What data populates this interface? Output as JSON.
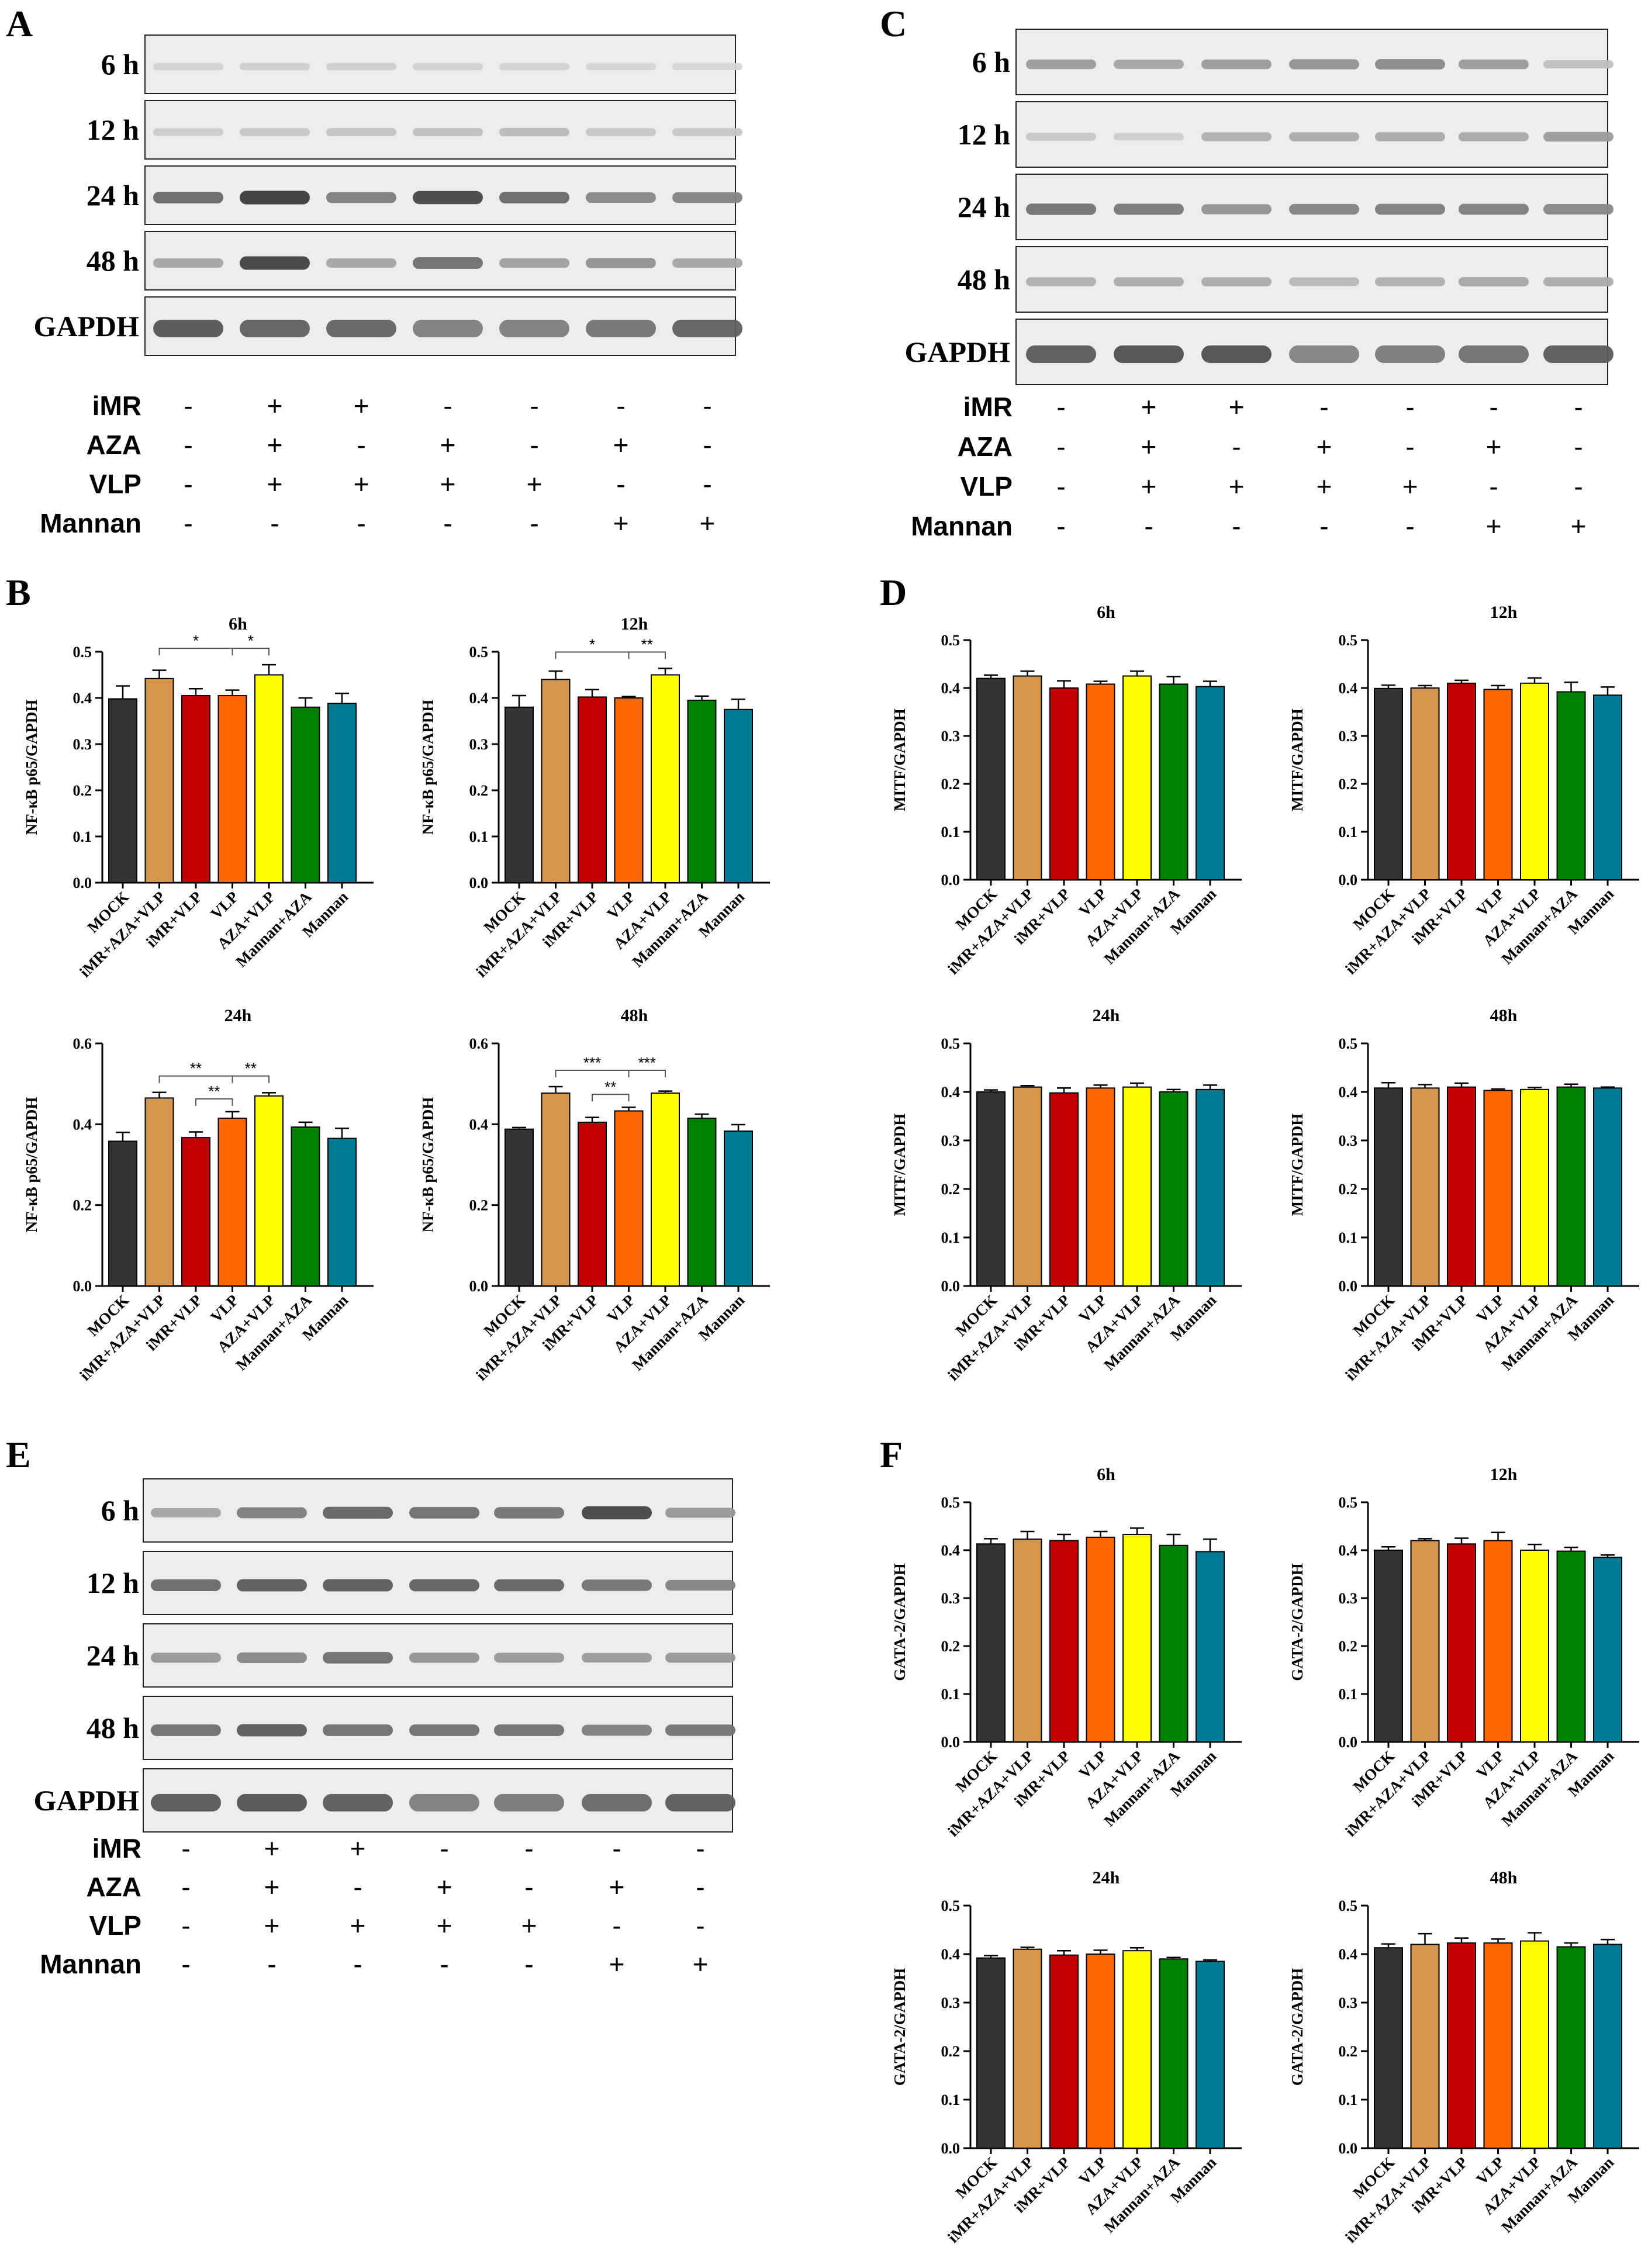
{
  "figure": {
    "panel_letters": [
      "A",
      "B",
      "C",
      "D",
      "E",
      "F"
    ],
    "treatments": {
      "rows": [
        {
          "label": "iMR",
          "signs": [
            "-",
            "+",
            "+",
            "-",
            "-",
            "-",
            "-"
          ]
        },
        {
          "label": "AZA",
          "signs": [
            "-",
            "+",
            "-",
            "+",
            "-",
            "+",
            "-"
          ]
        },
        {
          "label": "VLP",
          "signs": [
            "-",
            "+",
            "+",
            "+",
            "+",
            "-",
            "-"
          ]
        },
        {
          "label": "Mannan",
          "signs": [
            "-",
            "-",
            "-",
            "-",
            "-",
            "+",
            "+"
          ]
        }
      ]
    },
    "blots": {
      "A": {
        "labels": [
          "6 h",
          "12 h",
          "24 h",
          "48 h",
          "GAPDH"
        ],
        "band_intensity": [
          [
            0.12,
            0.14,
            0.14,
            0.13,
            0.12,
            0.11,
            0.1
          ],
          [
            0.16,
            0.18,
            0.2,
            0.22,
            0.24,
            0.18,
            0.18
          ],
          [
            0.65,
            0.88,
            0.55,
            0.82,
            0.65,
            0.5,
            0.52
          ],
          [
            0.35,
            0.85,
            0.35,
            0.62,
            0.38,
            0.45,
            0.35
          ],
          [
            0.75,
            0.7,
            0.68,
            0.55,
            0.55,
            0.6,
            0.7
          ]
        ]
      },
      "C": {
        "labels": [
          "6 h",
          "12 h",
          "24 h",
          "48 h",
          "GAPDH"
        ],
        "band_intensity": [
          [
            0.4,
            0.35,
            0.4,
            0.45,
            0.48,
            0.4,
            0.22
          ],
          [
            0.18,
            0.15,
            0.3,
            0.32,
            0.33,
            0.33,
            0.4
          ],
          [
            0.6,
            0.58,
            0.45,
            0.52,
            0.55,
            0.55,
            0.5
          ],
          [
            0.3,
            0.32,
            0.32,
            0.26,
            0.3,
            0.34,
            0.32
          ],
          [
            0.72,
            0.78,
            0.78,
            0.52,
            0.56,
            0.62,
            0.72
          ]
        ]
      },
      "E": {
        "labels": [
          "6 h",
          "12 h",
          "24 h",
          "48 h",
          "GAPDH"
        ],
        "band_intensity": [
          [
            0.35,
            0.55,
            0.68,
            0.62,
            0.6,
            0.82,
            0.42
          ],
          [
            0.65,
            0.72,
            0.72,
            0.7,
            0.68,
            0.6,
            0.52
          ],
          [
            0.42,
            0.5,
            0.62,
            0.45,
            0.42,
            0.4,
            0.42
          ],
          [
            0.62,
            0.72,
            0.62,
            0.62,
            0.62,
            0.55,
            0.6
          ],
          [
            0.74,
            0.76,
            0.72,
            0.55,
            0.58,
            0.66,
            0.72
          ]
        ]
      }
    }
  },
  "chart_data": [
    {
      "panel": "B",
      "type": "bar",
      "title": "6h",
      "ylabel": "NF-κB p65/GAPDH",
      "ylim": [
        0,
        0.5
      ],
      "yticks": [
        "0.0",
        "0.1",
        "0.2",
        "0.3",
        "0.4",
        "0.5"
      ],
      "categories": [
        "MOCK",
        "iMR+AZA+VLP",
        "iMR+VLP",
        "VLP",
        "AZA+VLP",
        "Mannan+AZA",
        "Mannan"
      ],
      "values": [
        0.398,
        0.442,
        0.405,
        0.405,
        0.45,
        0.38,
        0.388
      ],
      "errors": [
        0.028,
        0.018,
        0.015,
        0.012,
        0.022,
        0.02,
        0.022
      ],
      "significance": [
        {
          "from": 1,
          "to": 3,
          "label": "*"
        },
        {
          "from": 3,
          "to": 4,
          "label": "*"
        }
      ]
    },
    {
      "panel": "B",
      "type": "bar",
      "title": "12h",
      "ylabel": "NF-κB p65/GAPDH",
      "ylim": [
        0,
        0.5
      ],
      "yticks": [
        "0.0",
        "0.1",
        "0.2",
        "0.3",
        "0.4",
        "0.5"
      ],
      "categories": [
        "MOCK",
        "iMR+AZA+VLP",
        "iMR+VLP",
        "VLP",
        "AZA+VLP",
        "Mannan+AZA",
        "Mannan"
      ],
      "values": [
        0.38,
        0.44,
        0.402,
        0.4,
        0.45,
        0.395,
        0.375
      ],
      "errors": [
        0.025,
        0.018,
        0.016,
        0.003,
        0.014,
        0.009,
        0.022
      ],
      "significance": [
        {
          "from": 1,
          "to": 3,
          "label": "*"
        },
        {
          "from": 3,
          "to": 4,
          "label": "**"
        }
      ]
    },
    {
      "panel": "B",
      "type": "bar",
      "title": "24h",
      "ylabel": "NF-κB p65/GAPDH",
      "ylim": [
        0,
        0.6
      ],
      "yticks": [
        "0.0",
        "0.2",
        "0.4",
        "0.6"
      ],
      "categories": [
        "MOCK",
        "iMR+AZA+VLP",
        "iMR+VLP",
        "VLP",
        "AZA+VLP",
        "Mannan+AZA",
        "Mannan"
      ],
      "values": [
        0.358,
        0.465,
        0.367,
        0.415,
        0.47,
        0.393,
        0.365
      ],
      "errors": [
        0.022,
        0.014,
        0.014,
        0.016,
        0.008,
        0.012,
        0.025
      ],
      "significance": [
        {
          "from": 1,
          "to": 3,
          "label": "**"
        },
        {
          "from": 3,
          "to": 4,
          "label": "**"
        },
        {
          "from": 2,
          "to": 3,
          "label": "**"
        }
      ]
    },
    {
      "panel": "B",
      "type": "bar",
      "title": "48h",
      "ylabel": "NF-κB p65/GAPDH",
      "ylim": [
        0,
        0.6
      ],
      "yticks": [
        "0.0",
        "0.2",
        "0.4",
        "0.6"
      ],
      "categories": [
        "MOCK",
        "iMR+AZA+VLP",
        "iMR+VLP",
        "VLP",
        "AZA+VLP",
        "Mannan+AZA",
        "Mannan"
      ],
      "values": [
        0.388,
        0.477,
        0.405,
        0.433,
        0.477,
        0.415,
        0.383
      ],
      "errors": [
        0.004,
        0.016,
        0.012,
        0.009,
        0.005,
        0.01,
        0.016
      ],
      "significance": [
        {
          "from": 1,
          "to": 3,
          "label": "***"
        },
        {
          "from": 3,
          "to": 4,
          "label": "***"
        },
        {
          "from": 2,
          "to": 3,
          "label": "**"
        }
      ]
    },
    {
      "panel": "D",
      "type": "bar",
      "title": "6h",
      "ylabel": "MITF/GAPDH",
      "ylim": [
        0,
        0.5
      ],
      "yticks": [
        "0.0",
        "0.1",
        "0.2",
        "0.3",
        "0.4",
        "0.5"
      ],
      "categories": [
        "MOCK",
        "iMR+AZA+VLP",
        "iMR+VLP",
        "VLP",
        "AZA+VLP",
        "Mannan+AZA",
        "Mannan"
      ],
      "values": [
        0.42,
        0.425,
        0.4,
        0.408,
        0.425,
        0.408,
        0.403
      ],
      "errors": [
        0.007,
        0.01,
        0.015,
        0.006,
        0.01,
        0.016,
        0.011
      ],
      "significance": []
    },
    {
      "panel": "D",
      "type": "bar",
      "title": "12h",
      "ylabel": "MITF/GAPDH",
      "ylim": [
        0,
        0.5
      ],
      "yticks": [
        "0.0",
        "0.1",
        "0.2",
        "0.3",
        "0.4",
        "0.5"
      ],
      "categories": [
        "MOCK",
        "iMR+AZA+VLP",
        "iMR+VLP",
        "VLP",
        "AZA+VLP",
        "Mannan+AZA",
        "Mannan"
      ],
      "values": [
        0.399,
        0.4,
        0.41,
        0.397,
        0.41,
        0.392,
        0.385
      ],
      "errors": [
        0.007,
        0.005,
        0.006,
        0.008,
        0.011,
        0.02,
        0.017
      ],
      "significance": []
    },
    {
      "panel": "D",
      "type": "bar",
      "title": "24h",
      "ylabel": "MITF/GAPDH",
      "ylim": [
        0,
        0.5
      ],
      "yticks": [
        "0.0",
        "0.1",
        "0.2",
        "0.3",
        "0.4",
        "0.5"
      ],
      "categories": [
        "MOCK",
        "iMR+AZA+VLP",
        "iMR+VLP",
        "VLP",
        "AZA+VLP",
        "Mannan+AZA",
        "Mannan"
      ],
      "values": [
        0.4,
        0.41,
        0.398,
        0.408,
        0.41,
        0.4,
        0.405
      ],
      "errors": [
        0.004,
        0.003,
        0.01,
        0.006,
        0.008,
        0.005,
        0.009
      ],
      "significance": []
    },
    {
      "panel": "D",
      "type": "bar",
      "title": "48h",
      "ylabel": "MITF/GAPDH",
      "ylim": [
        0,
        0.5
      ],
      "yticks": [
        "0.0",
        "0.1",
        "0.2",
        "0.3",
        "0.4",
        "0.5"
      ],
      "categories": [
        "MOCK",
        "iMR+AZA+VLP",
        "iMR+VLP",
        "VLP",
        "AZA+VLP",
        "Mannan+AZA",
        "Mannan"
      ],
      "values": [
        0.408,
        0.408,
        0.41,
        0.403,
        0.405,
        0.41,
        0.408
      ],
      "errors": [
        0.011,
        0.007,
        0.008,
        0.003,
        0.004,
        0.006,
        0.002
      ],
      "significance": []
    },
    {
      "panel": "F",
      "type": "bar",
      "title": "6h",
      "ylabel": "GATA-2/GAPDH",
      "ylim": [
        0,
        0.5
      ],
      "yticks": [
        "0.0",
        "0.1",
        "0.2",
        "0.3",
        "0.4",
        "0.5"
      ],
      "categories": [
        "MOCK",
        "iMR+AZA+VLP",
        "iMR+VLP",
        "VLP",
        "AZA+VLP",
        "Mannan+AZA",
        "Mannan"
      ],
      "values": [
        0.413,
        0.423,
        0.42,
        0.427,
        0.433,
        0.41,
        0.397
      ],
      "errors": [
        0.011,
        0.016,
        0.013,
        0.012,
        0.013,
        0.023,
        0.026
      ],
      "significance": []
    },
    {
      "panel": "F",
      "type": "bar",
      "title": "12h",
      "ylabel": "GATA-2/GAPDH",
      "ylim": [
        0,
        0.5
      ],
      "yticks": [
        "0.0",
        "0.1",
        "0.2",
        "0.3",
        "0.4",
        "0.5"
      ],
      "categories": [
        "MOCK",
        "iMR+AZA+VLP",
        "iMR+VLP",
        "VLP",
        "AZA+VLP",
        "Mannan+AZA",
        "Mannan"
      ],
      "values": [
        0.4,
        0.42,
        0.413,
        0.42,
        0.4,
        0.398,
        0.385
      ],
      "errors": [
        0.007,
        0.004,
        0.012,
        0.017,
        0.012,
        0.008,
        0.005
      ],
      "significance": []
    },
    {
      "panel": "F",
      "type": "bar",
      "title": "24h",
      "ylabel": "GATA-2/GAPDH",
      "ylim": [
        0,
        0.5
      ],
      "yticks": [
        "0.0",
        "0.1",
        "0.2",
        "0.3",
        "0.4",
        "0.5"
      ],
      "categories": [
        "MOCK",
        "iMR+AZA+VLP",
        "iMR+VLP",
        "VLP",
        "AZA+VLP",
        "Mannan+AZA",
        "Mannan"
      ],
      "values": [
        0.392,
        0.41,
        0.398,
        0.4,
        0.407,
        0.39,
        0.385
      ],
      "errors": [
        0.005,
        0.004,
        0.009,
        0.008,
        0.006,
        0.003,
        0.003
      ],
      "significance": []
    },
    {
      "panel": "F",
      "type": "bar",
      "title": "48h",
      "ylabel": "GATA-2/GAPDH",
      "ylim": [
        0,
        0.5
      ],
      "yticks": [
        "0.0",
        "0.1",
        "0.2",
        "0.3",
        "0.4",
        "0.5"
      ],
      "categories": [
        "MOCK",
        "iMR+AZA+VLP",
        "iMR+VLP",
        "VLP",
        "AZA+VLP",
        "Mannan+AZA",
        "Mannan"
      ],
      "values": [
        0.413,
        0.42,
        0.423,
        0.423,
        0.427,
        0.415,
        0.42
      ],
      "errors": [
        0.008,
        0.022,
        0.01,
        0.008,
        0.017,
        0.008,
        0.01
      ],
      "significance": []
    }
  ],
  "colors": {
    "bars": [
      "#333333",
      "#D4954F",
      "#C00000",
      "#FF6600",
      "#FFFF00",
      "#008000",
      "#007B93"
    ]
  }
}
